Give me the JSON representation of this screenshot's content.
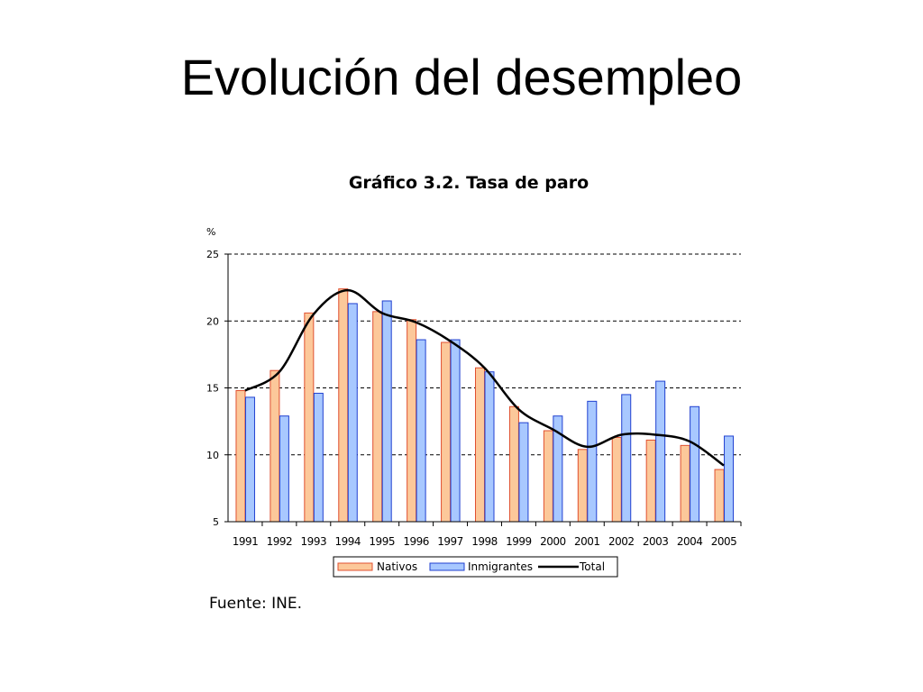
{
  "slide": {
    "title": "Evolución del desempleo",
    "source": "Fuente: INE."
  },
  "chart_data": {
    "type": "bar",
    "title": "Gráfico 3.2. Tasa de paro",
    "ylabel": "%",
    "xlabel": "",
    "ylim": [
      5,
      25
    ],
    "yticks": [
      5,
      10,
      15,
      20,
      25
    ],
    "grid": true,
    "legend_position": "bottom",
    "categories": [
      "1991",
      "1992",
      "1993",
      "1994",
      "1995",
      "1996",
      "1997",
      "1998",
      "1999",
      "2000",
      "2001",
      "2002",
      "2003",
      "2004",
      "2005"
    ],
    "series": [
      {
        "name": "Nativos",
        "kind": "bar",
        "color": "#fcc89a",
        "stroke": "#e05030",
        "values": [
          14.8,
          16.3,
          20.6,
          22.4,
          20.7,
          20.1,
          18.4,
          16.5,
          13.6,
          11.8,
          10.4,
          11.3,
          11.1,
          10.7,
          8.9
        ]
      },
      {
        "name": "Inmigrantes",
        "kind": "bar",
        "color": "#a8c8ff",
        "stroke": "#2040d0",
        "values": [
          14.3,
          12.9,
          14.6,
          21.3,
          21.5,
          18.6,
          18.6,
          16.2,
          12.4,
          12.9,
          14.0,
          14.5,
          15.5,
          13.6,
          11.4
        ]
      },
      {
        "name": "Total",
        "kind": "line",
        "color": "#000000",
        "values": [
          14.8,
          16.2,
          20.5,
          22.3,
          20.6,
          19.9,
          18.5,
          16.5,
          13.4,
          11.9,
          10.6,
          11.5,
          11.5,
          11.0,
          9.2
        ]
      }
    ]
  }
}
